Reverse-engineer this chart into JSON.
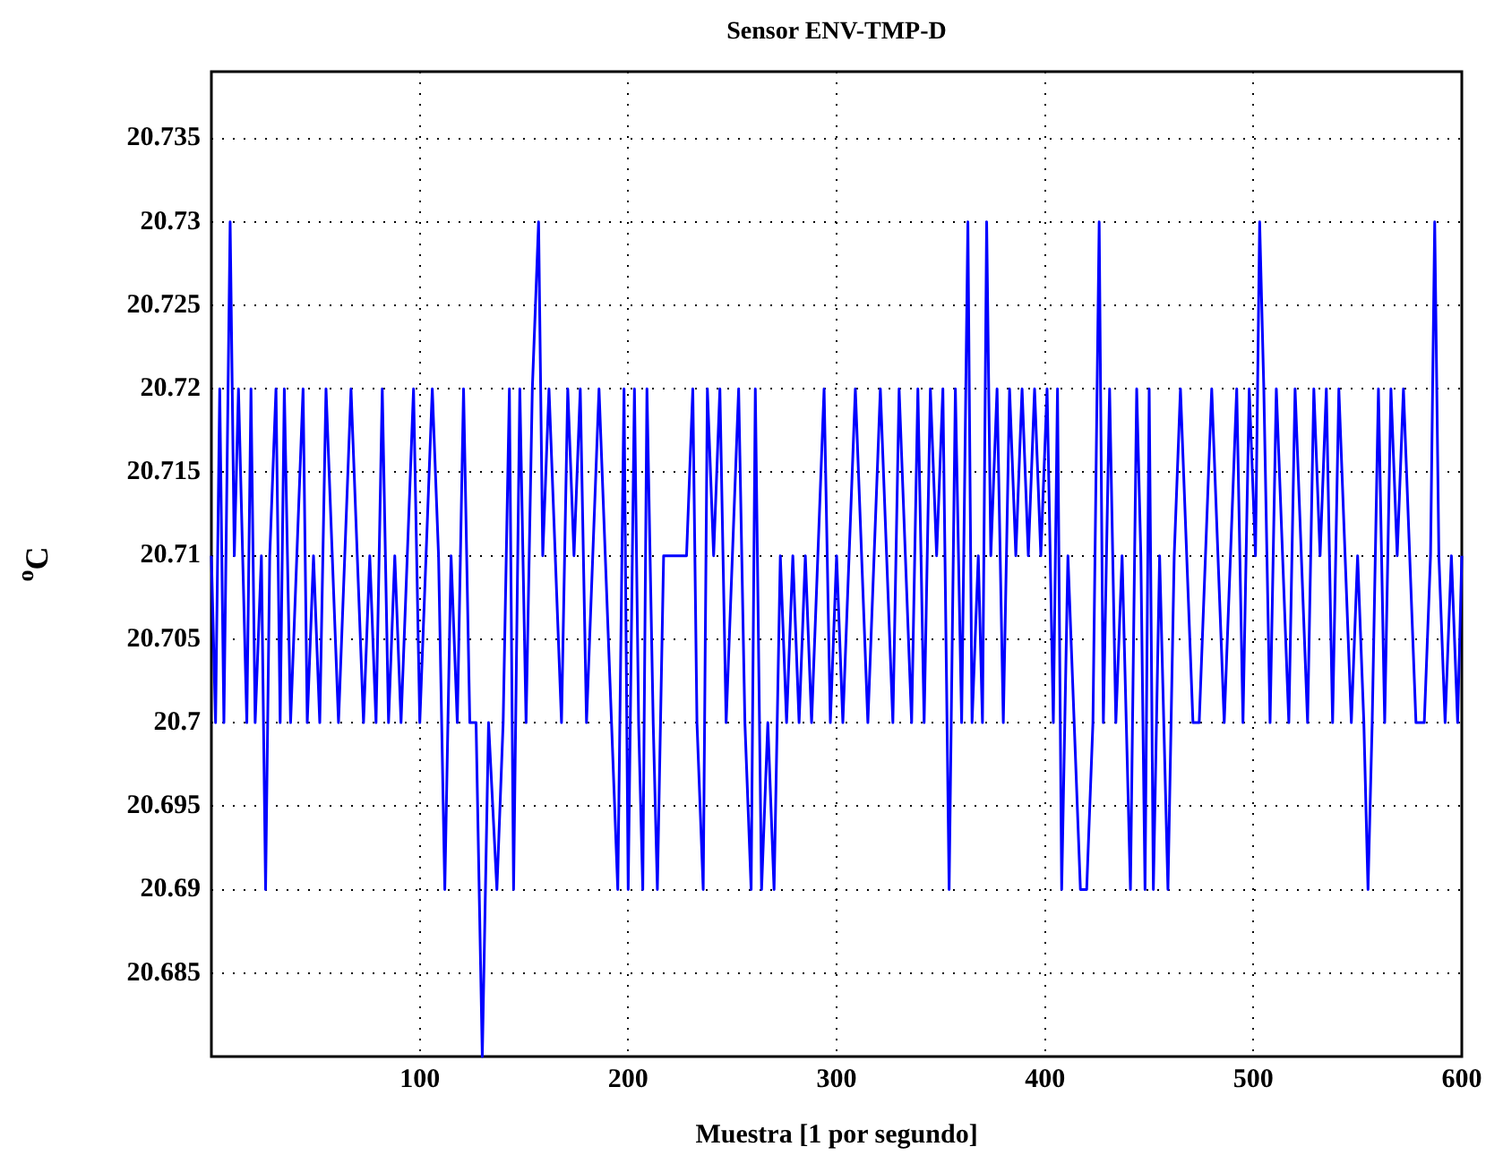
{
  "chart_data": {
    "type": "line",
    "title": "Sensor ENV-TMP-D",
    "xlabel": "Muestra [1 por segundo]",
    "ylabel": "$^{o}$C",
    "x": [
      0,
      2,
      4,
      6,
      8,
      9,
      11,
      13,
      15,
      17,
      19,
      21,
      24,
      26,
      28,
      31,
      33,
      35,
      38,
      41,
      44,
      46,
      49,
      52,
      55,
      58,
      61,
      64,
      67,
      70,
      73,
      76,
      79,
      82,
      85,
      88,
      91,
      94,
      97,
      100,
      103,
      106,
      109,
      112,
      115,
      118,
      121,
      124,
      127,
      130,
      133,
      137,
      140,
      143,
      145,
      148,
      151,
      154,
      157,
      159,
      162,
      165,
      168,
      171,
      174,
      177,
      180,
      183,
      186,
      189,
      192,
      195,
      198,
      200,
      203,
      205,
      207,
      209,
      212,
      214,
      217,
      220,
      224,
      228,
      231,
      233,
      236,
      238,
      241,
      244,
      247,
      250,
      253,
      256,
      259,
      261,
      264,
      267,
      270,
      273,
      276,
      279,
      282,
      285,
      288,
      291,
      294,
      297,
      300,
      303,
      306,
      309,
      312,
      315,
      318,
      321,
      324,
      327,
      330,
      333,
      336,
      339,
      342,
      345,
      348,
      351,
      354,
      357,
      360,
      363,
      365,
      368,
      370,
      372,
      374,
      377,
      380,
      383,
      386,
      389,
      392,
      395,
      398,
      401,
      404,
      406,
      408,
      411,
      414,
      417,
      420,
      423,
      426,
      428,
      431,
      434,
      437,
      441,
      444,
      446,
      448,
      450,
      452,
      455,
      457,
      459,
      462,
      465,
      468,
      471,
      474,
      477,
      480,
      483,
      486,
      489,
      492,
      495,
      498,
      501,
      503,
      505,
      508,
      511,
      514,
      517,
      520,
      523,
      526,
      529,
      532,
      535,
      538,
      541,
      544,
      547,
      550,
      553,
      555,
      557,
      560,
      563,
      566,
      569,
      572,
      575,
      578,
      582,
      585,
      587,
      589,
      592,
      595,
      598,
      600
    ],
    "series": [
      {
        "color": "#0000ff",
        "values": [
          20.71,
          20.7,
          20.72,
          20.7,
          20.72,
          20.73,
          20.71,
          20.72,
          20.71,
          20.7,
          20.72,
          20.7,
          20.71,
          20.69,
          20.71,
          20.72,
          20.7,
          20.72,
          20.7,
          20.71,
          20.72,
          20.7,
          20.71,
          20.7,
          20.72,
          20.71,
          20.7,
          20.71,
          20.72,
          20.71,
          20.7,
          20.71,
          20.7,
          20.72,
          20.7,
          20.71,
          20.7,
          20.71,
          20.72,
          20.7,
          20.71,
          20.72,
          20.71,
          20.69,
          20.71,
          20.7,
          20.72,
          20.7,
          20.7,
          20.68,
          20.7,
          20.69,
          20.7,
          20.72,
          20.69,
          20.72,
          20.7,
          20.72,
          20.73,
          20.71,
          20.72,
          20.71,
          20.7,
          20.72,
          20.71,
          20.72,
          20.7,
          20.71,
          20.72,
          20.71,
          20.7,
          20.69,
          20.72,
          20.69,
          20.72,
          20.7,
          20.69,
          20.72,
          20.7,
          20.69,
          20.71,
          20.71,
          20.71,
          20.71,
          20.72,
          20.7,
          20.69,
          20.72,
          20.71,
          20.72,
          20.7,
          20.71,
          20.72,
          20.7,
          20.69,
          20.72,
          20.69,
          20.7,
          20.69,
          20.71,
          20.7,
          20.71,
          20.7,
          20.71,
          20.7,
          20.71,
          20.72,
          20.7,
          20.71,
          20.7,
          20.71,
          20.72,
          20.71,
          20.7,
          20.71,
          20.72,
          20.71,
          20.7,
          20.72,
          20.71,
          20.7,
          20.72,
          20.7,
          20.72,
          20.71,
          20.72,
          20.69,
          20.72,
          20.7,
          20.73,
          20.7,
          20.71,
          20.7,
          20.73,
          20.71,
          20.72,
          20.7,
          20.72,
          20.71,
          20.72,
          20.71,
          20.72,
          20.71,
          20.72,
          20.7,
          20.72,
          20.69,
          20.71,
          20.7,
          20.69,
          20.69,
          20.7,
          20.73,
          20.7,
          20.72,
          20.7,
          20.71,
          20.69,
          20.72,
          20.71,
          20.69,
          20.72,
          20.69,
          20.71,
          20.7,
          20.69,
          20.71,
          20.72,
          20.71,
          20.7,
          20.7,
          20.71,
          20.72,
          20.71,
          20.7,
          20.71,
          20.72,
          20.7,
          20.72,
          20.71,
          20.73,
          20.72,
          20.7,
          20.72,
          20.71,
          20.7,
          20.72,
          20.71,
          20.7,
          20.72,
          20.71,
          20.72,
          20.7,
          20.72,
          20.71,
          20.7,
          20.71,
          20.7,
          20.69,
          20.7,
          20.72,
          20.7,
          20.72,
          20.71,
          20.72,
          20.71,
          20.7,
          20.7,
          20.71,
          20.73,
          20.71,
          20.7,
          20.71,
          20.7,
          20.71
        ]
      }
    ],
    "xlim": [
      0,
      600
    ],
    "xticks": [
      100,
      200,
      300,
      400,
      500,
      600
    ],
    "ylim": [
      20.68,
      20.739
    ],
    "yticks": [
      20.685,
      20.69,
      20.695,
      20.7,
      20.705,
      20.71,
      20.715,
      20.72,
      20.725,
      20.73,
      20.735
    ],
    "grid": true,
    "legend": false,
    "marker": "none",
    "line_style": "solid"
  }
}
